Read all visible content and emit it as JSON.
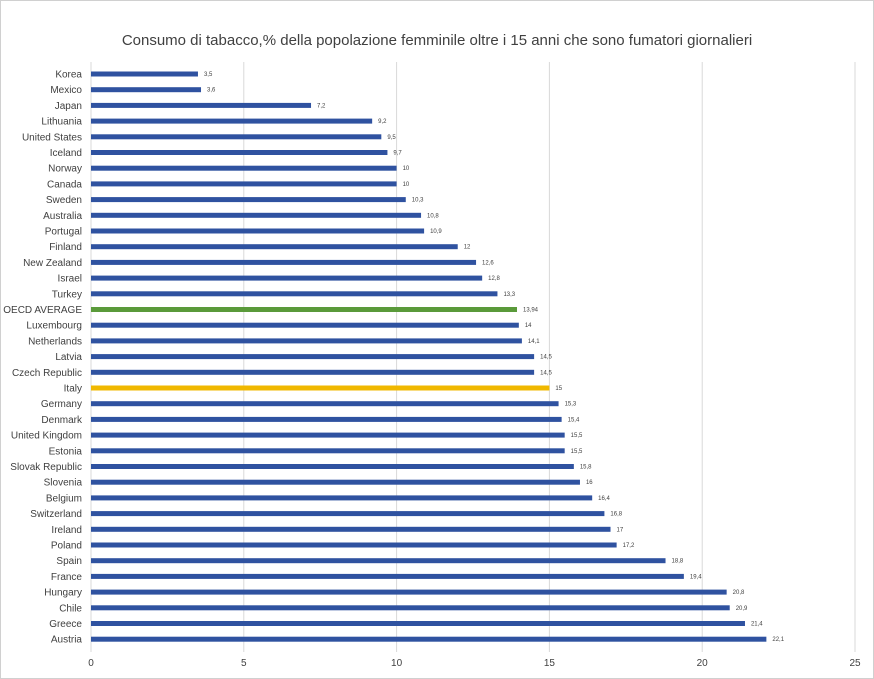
{
  "chart_data": {
    "type": "bar",
    "orientation": "horizontal",
    "title": "Consumo di tabacco,% della popolazione femminile oltre i 15 anni che sono fumatori giornalieri",
    "categories": [
      "Korea",
      "Mexico",
      "Japan",
      "Lithuania",
      "United States",
      "Iceland",
      "Norway",
      "Canada",
      "Sweden",
      "Australia",
      "Portugal",
      "Finland",
      "New Zealand",
      "Israel",
      "Turkey",
      "OECD AVERAGE",
      "Luxembourg",
      "Netherlands",
      "Latvia",
      "Czech Republic",
      "Italy",
      "Germany",
      "Denmark",
      "United Kingdom",
      "Estonia",
      "Slovak Republic",
      "Slovenia",
      "Belgium",
      "Switzerland",
      "Ireland",
      "Poland",
      "Spain",
      "France",
      "Hungary",
      "Chile",
      "Greece",
      "Austria"
    ],
    "values": [
      3.5,
      3.6,
      7.2,
      9.2,
      9.5,
      9.7,
      10,
      10,
      10.3,
      10.8,
      10.9,
      12,
      12.6,
      12.8,
      13.3,
      13.94,
      14,
      14.1,
      14.5,
      14.5,
      15,
      15.3,
      15.4,
      15.5,
      15.5,
      15.8,
      16,
      16.4,
      16.8,
      17,
      17.2,
      18.8,
      19.4,
      20.8,
      20.9,
      21.4,
      22.1
    ],
    "value_labels": [
      "3,5",
      "3,6",
      "7,2",
      "9,2",
      "9,5",
      "9,7",
      "10",
      "10",
      "10,3",
      "10,8",
      "10,9",
      "12",
      "12,6",
      "12,8",
      "13,3",
      "13,94",
      "14",
      "14,1",
      "14,5",
      "14,5",
      "15",
      "15,3",
      "15,4",
      "15,5",
      "15,5",
      "15,8",
      "16",
      "16,4",
      "16,8",
      "17",
      "17,2",
      "18,8",
      "19,4",
      "20,8",
      "20,9",
      "21,4",
      "22,1"
    ],
    "xlim": [
      0,
      25
    ],
    "x_ticks": [
      "0",
      "5",
      "10",
      "15",
      "20",
      "25"
    ],
    "grid": "vertical",
    "colors": {
      "default": "#2f52a0",
      "highlight_green": "#5a9a3a",
      "highlight_gold": "#f0b800"
    },
    "highlights": {
      "OECD AVERAGE": "highlight_green",
      "Italy": "highlight_gold"
    }
  }
}
